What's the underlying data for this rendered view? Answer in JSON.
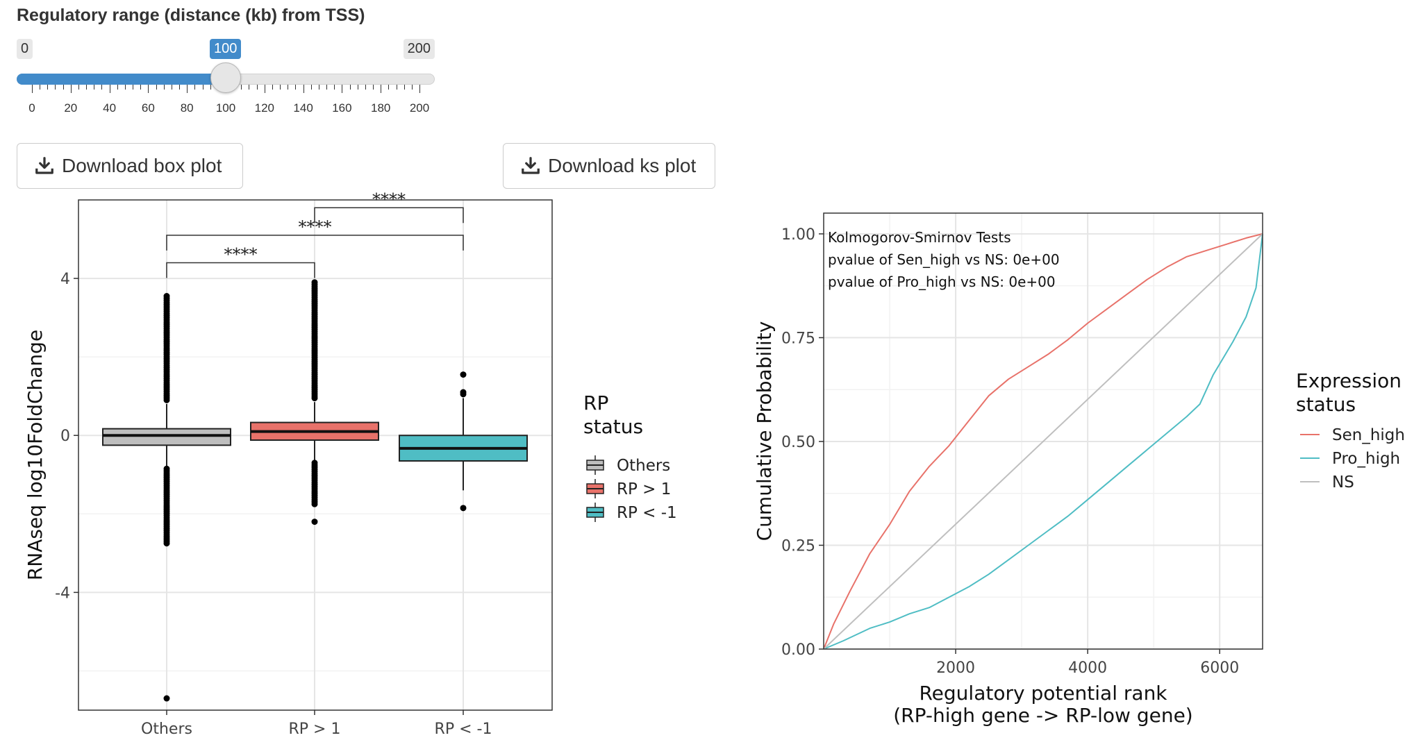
{
  "slider": {
    "label": "Regulatory range (distance (kb) from TSS)",
    "min": "0",
    "max": "200",
    "value": "100",
    "ticks": [
      "0",
      "20",
      "40",
      "60",
      "80",
      "100",
      "120",
      "140",
      "160",
      "180",
      "200"
    ],
    "fill_color": "#428bca"
  },
  "buttons": {
    "download_box": "Download box plot",
    "download_ks": "Download ks plot"
  },
  "chart_data": [
    {
      "type": "box",
      "ylabel": "RNAseq log10FoldChange",
      "xlabel": "",
      "ylim": [
        -7,
        6
      ],
      "y_ticks": [
        "4",
        "0",
        "-4"
      ],
      "categories": [
        "Others",
        "RP > 1",
        "RP < -1"
      ],
      "legend_title": "RP\nstatus",
      "legend": [
        "Others",
        "RP > 1",
        "RP < -1"
      ],
      "colors": [
        "#bebebe",
        "#e8726a",
        "#4fbdc4"
      ],
      "boxes": [
        {
          "name": "Others",
          "q1": -0.25,
          "median": 0.0,
          "q3": 0.17,
          "whisker_low": -0.8,
          "whisker_high": 0.8,
          "outliers_range": [
            [
              -2.75,
              -0.85
            ],
            [
              0.9,
              3.55
            ]
          ],
          "extra_outliers": [
            -6.7
          ]
        },
        {
          "name": "RP > 1",
          "q1": -0.12,
          "median": 0.1,
          "q3": 0.33,
          "whisker_low": -0.65,
          "whisker_high": 0.85,
          "outliers_range": [
            [
              -1.75,
              -0.7
            ],
            [
              0.95,
              3.9
            ]
          ],
          "extra_outliers": [
            -2.2
          ]
        },
        {
          "name": "RP < -1",
          "q1": -0.65,
          "median": -0.33,
          "q3": 0.0,
          "whisker_low": -1.4,
          "whisker_high": 0.95,
          "outliers_range": [],
          "extra_outliers": [
            -1.85,
            1.05,
            1.1,
            1.55
          ]
        }
      ],
      "significance": [
        {
          "from": "Others",
          "to": "RP > 1",
          "label": "****",
          "y": 4.4
        },
        {
          "from": "Others",
          "to": "RP < -1",
          "label": "****",
          "y": 5.1
        },
        {
          "from": "RP > 1",
          "to": "RP < -1",
          "label": "****",
          "y": 5.8
        }
      ]
    },
    {
      "type": "line",
      "xlabel": "Regulatory potential rank\n(RP-high gene -> RP-low gene)",
      "ylabel": "Cumulative Probability",
      "xlim": [
        0,
        6650
      ],
      "ylim": [
        0,
        1.05
      ],
      "x_ticks": [
        "2000",
        "4000",
        "6000"
      ],
      "y_ticks": [
        "0.00",
        "0.25",
        "0.50",
        "0.75",
        "1.00"
      ],
      "annotation": [
        "Kolmogorov-Smirnov Tests",
        "pvalue of Sen_high vs NS: 0e+00",
        "pvalue of Pro_high vs NS: 0e+00"
      ],
      "legend_title": "Expression\nstatus",
      "series": [
        {
          "name": "Sen_high",
          "color": "#e8726a",
          "x": [
            0,
            150,
            400,
            700,
            1000,
            1300,
            1600,
            1900,
            2200,
            2500,
            2800,
            3100,
            3400,
            3700,
            4000,
            4300,
            4600,
            4900,
            5200,
            5500,
            5800,
            6100,
            6400,
            6650
          ],
          "y": [
            0,
            0.06,
            0.14,
            0.23,
            0.3,
            0.38,
            0.44,
            0.49,
            0.55,
            0.61,
            0.65,
            0.68,
            0.71,
            0.745,
            0.785,
            0.82,
            0.855,
            0.89,
            0.92,
            0.945,
            0.96,
            0.975,
            0.99,
            1.0
          ]
        },
        {
          "name": "Pro_high",
          "color": "#4fbdc4",
          "x": [
            0,
            300,
            700,
            1000,
            1300,
            1600,
            1900,
            2200,
            2500,
            2800,
            3100,
            3400,
            3700,
            4000,
            4300,
            4600,
            4900,
            5200,
            5500,
            5700,
            5900,
            6200,
            6400,
            6550,
            6650
          ],
          "y": [
            0,
            0.02,
            0.05,
            0.065,
            0.085,
            0.1,
            0.125,
            0.15,
            0.18,
            0.215,
            0.25,
            0.285,
            0.32,
            0.36,
            0.4,
            0.44,
            0.48,
            0.52,
            0.56,
            0.59,
            0.66,
            0.74,
            0.8,
            0.87,
            1.0
          ]
        },
        {
          "name": "NS",
          "color": "#bfbfbf",
          "x": [
            0,
            6650
          ],
          "y": [
            0,
            1.0
          ]
        }
      ]
    }
  ]
}
